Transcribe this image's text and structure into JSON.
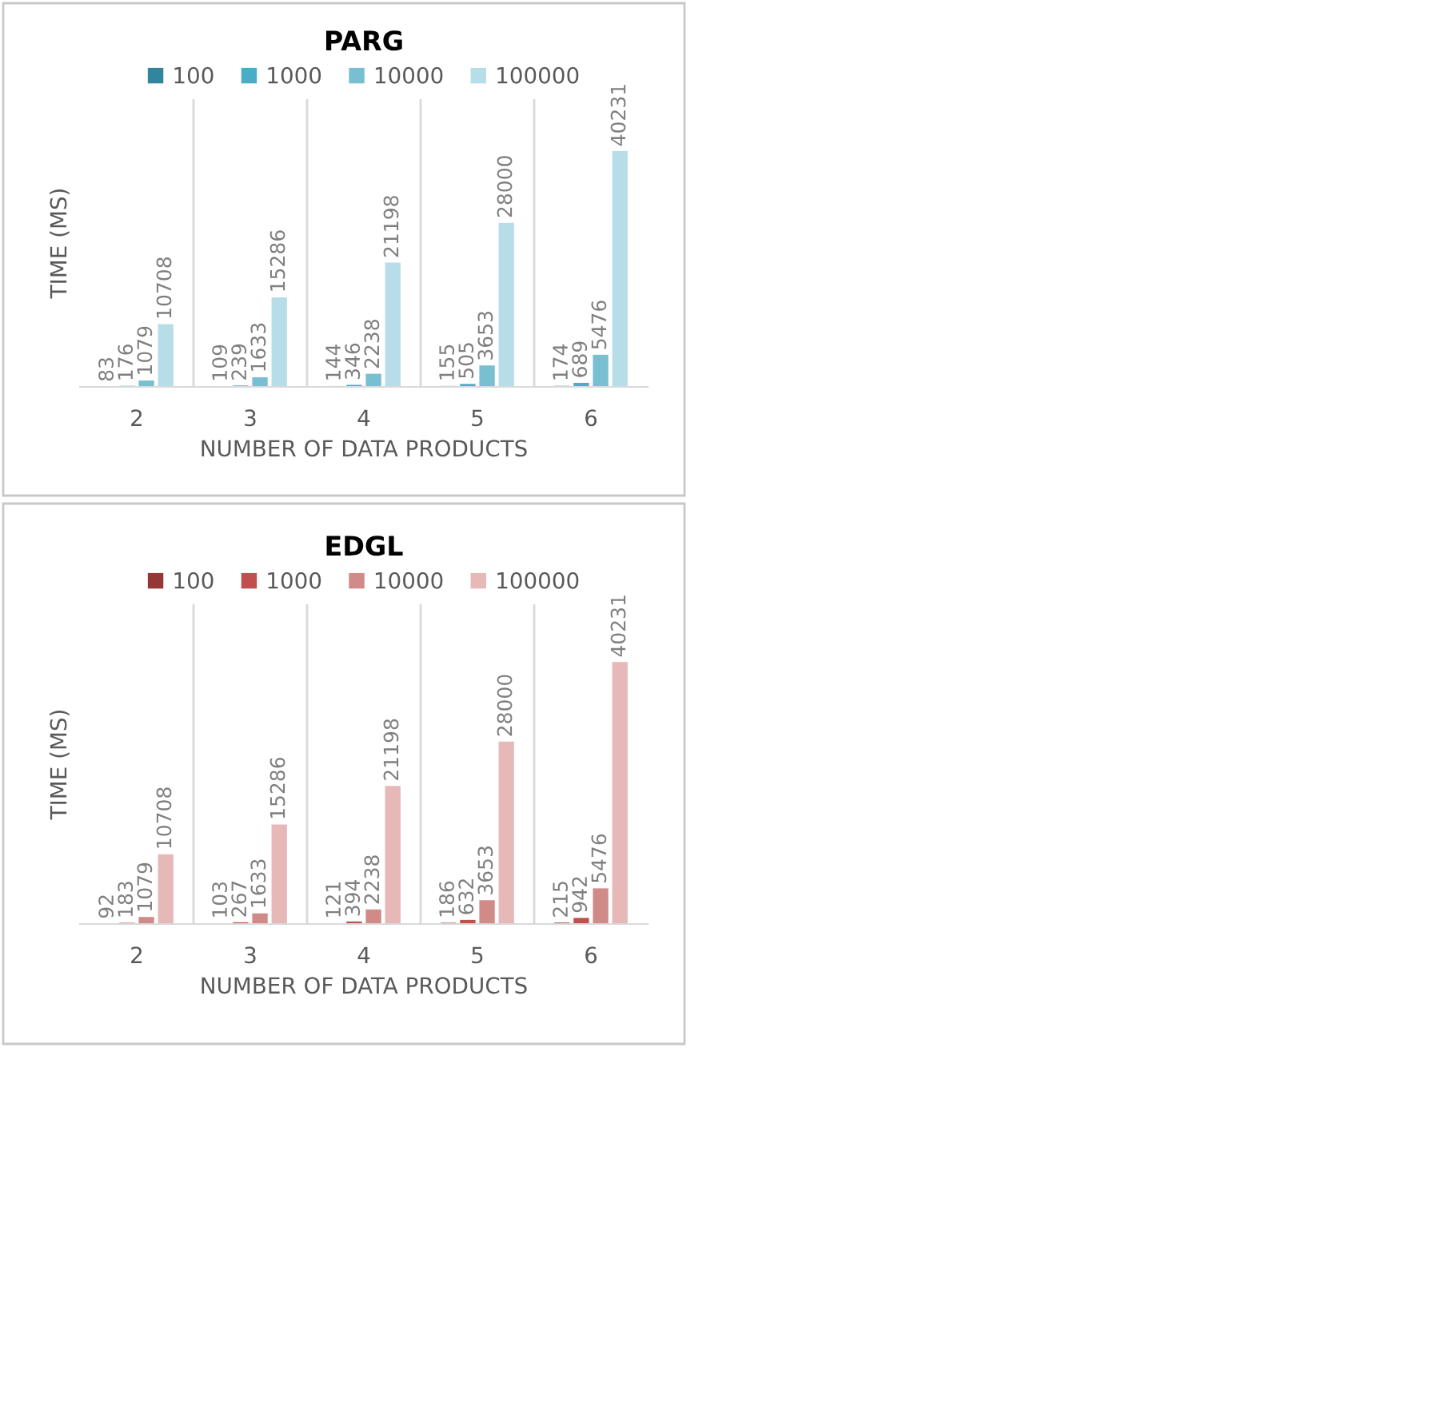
{
  "chart_data": [
    {
      "type": "bar",
      "title": "PARG",
      "xlabel": "NUMBER OF DATA PRODUCTS",
      "ylabel": "TIME (MS)",
      "categories": [
        "2",
        "3",
        "4",
        "5",
        "6"
      ],
      "series": [
        {
          "name": "100",
          "color": "#31859c",
          "values": [
            83,
            109,
            144,
            155,
            174
          ]
        },
        {
          "name": "1000",
          "color": "#4bacc6",
          "values": [
            176,
            239,
            346,
            505,
            689
          ]
        },
        {
          "name": "10000",
          "color": "#78bfd2",
          "values": [
            1079,
            1633,
            2238,
            3653,
            5476
          ]
        },
        {
          "name": "100000",
          "color": "#b7dde8",
          "values": [
            10708,
            15286,
            21198,
            28000,
            40231
          ]
        }
      ],
      "data_labels": true,
      "legend": "top",
      "grid": "x",
      "tick_labels": "x"
    },
    {
      "type": "bar",
      "title": "EDGL",
      "xlabel": "NUMBER OF DATA PRODUCTS",
      "ylabel": "TIME (MS)",
      "categories": [
        "2",
        "3",
        "4",
        "5",
        "6"
      ],
      "series": [
        {
          "name": "100",
          "color": "#953735",
          "values": [
            92,
            103,
            121,
            186,
            215
          ]
        },
        {
          "name": "1000",
          "color": "#c0504d",
          "values": [
            183,
            267,
            394,
            632,
            942
          ]
        },
        {
          "name": "10000",
          "color": "#d08a88",
          "values": [
            1079,
            1633,
            2238,
            3653,
            5476
          ]
        },
        {
          "name": "100000",
          "color": "#e6b9b8",
          "values": [
            10708,
            15286,
            21198,
            28000,
            40231
          ]
        }
      ],
      "data_labels": true,
      "legend": "top",
      "grid": "x",
      "tick_labels": "x"
    }
  ]
}
